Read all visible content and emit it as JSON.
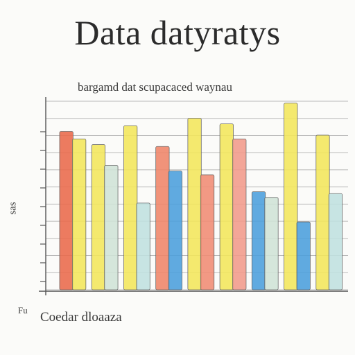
{
  "title": "Data datyratys",
  "subtitle": "bargamd dat scupacaced waynau",
  "ylabel": "sas",
  "xlabel": "Coedar dloaaza",
  "xcorner": "Fu",
  "chart_data": {
    "type": "bar",
    "title": "Data datyratys",
    "subtitle": "bargamd dat scupacaced waynau",
    "xlabel": "Coedar dloaaza",
    "ylabel": "sas",
    "ylim": [
      0,
      10
    ],
    "grid": true,
    "legend": "none",
    "y_ticks": [
      "",
      "",
      "",
      "",
      "",
      "",
      "",
      "",
      ""
    ],
    "groups": [
      {
        "bars": [
          {
            "color": "#e9694a",
            "value": 8.4
          },
          {
            "color": "#f3e65a",
            "value": 8.0
          }
        ]
      },
      {
        "bars": [
          {
            "color": "#f3e65a",
            "value": 7.7
          },
          {
            "color": "#cfe3d6",
            "value": 6.6
          }
        ]
      },
      {
        "bars": [
          {
            "color": "#f3e65a",
            "value": 8.7
          },
          {
            "color": "#bfe0df",
            "value": 4.6
          }
        ]
      },
      {
        "bars": [
          {
            "color": "#ef8468",
            "value": 7.6
          },
          {
            "color": "#4a9edc",
            "value": 6.3
          }
        ]
      },
      {
        "bars": [
          {
            "color": "#f3e65a",
            "value": 9.1
          },
          {
            "color": "#f08b73",
            "value": 6.1
          }
        ]
      },
      {
        "bars": [
          {
            "color": "#f3e65a",
            "value": 8.8
          },
          {
            "color": "#f19a8a",
            "value": 8.0
          }
        ]
      },
      {
        "bars": [
          {
            "color": "#4a9edc",
            "value": 5.2
          },
          {
            "color": "#cfe3d6",
            "value": 4.9
          }
        ]
      },
      {
        "bars": [
          {
            "color": "#f3e65a",
            "value": 9.9
          },
          {
            "color": "#4a9edc",
            "value": 3.6
          }
        ]
      },
      {
        "bars": [
          {
            "color": "#f3e65a",
            "value": 8.2
          },
          {
            "color": "#bfe0df",
            "value": 5.1
          }
        ]
      }
    ]
  }
}
